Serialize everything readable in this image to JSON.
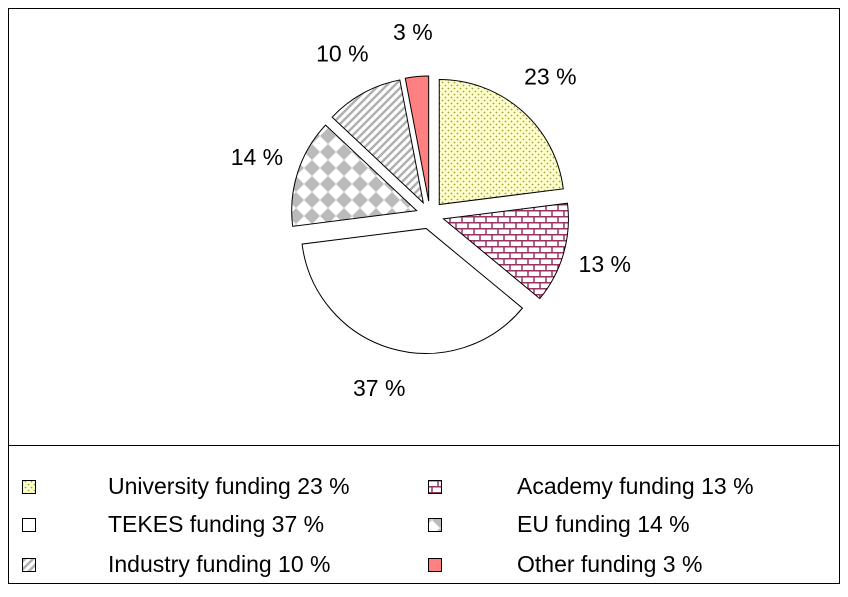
{
  "chart_data": {
    "type": "pie",
    "categories": [
      "University funding 23 %",
      "Academy funding 13 %",
      "TEKES funding 37 %",
      "EU funding 14 %",
      "Industry funding 10 %",
      "Other funding 3 %"
    ],
    "values": [
      23,
      13,
      37,
      14,
      10,
      3
    ],
    "value_labels": [
      "23 %",
      "13 %",
      "37 %",
      "14 %",
      "10 %",
      "3 %"
    ],
    "colors": [
      "#ffffcc",
      "#ffffff",
      "#ffffff",
      "#ffffff",
      "#ffffff",
      "#ff8080"
    ],
    "patterns": [
      "dots",
      "bricks",
      "none",
      "checker",
      "diagonal",
      "none"
    ],
    "legend": "bottom"
  }
}
